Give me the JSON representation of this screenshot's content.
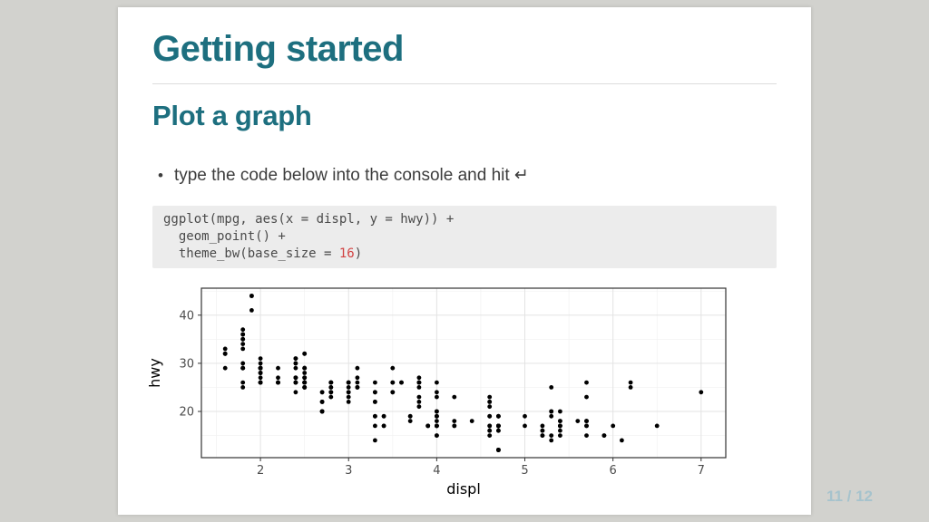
{
  "page": {
    "background_color": "#d2d2ce",
    "number": "11 / 12",
    "number_color": "#a6c3cd"
  },
  "slide": {
    "title": "Getting started",
    "subtitle": "Plot a graph",
    "accent_color": "#1d6f7f",
    "bullet_marker": "•",
    "bullet": "type the code below into the console and hit ↵"
  },
  "code_block": {
    "background": "#ececec",
    "text_color": "#4a4a4a",
    "number_color": "#d14141",
    "lines": [
      [
        {
          "t": "ggplot(mpg, aes(x = displ, y = hwy)) +",
          "c": "plain"
        }
      ],
      [
        {
          "t": "  geom_point() +",
          "c": "plain"
        }
      ],
      [
        {
          "t": "  theme_bw(base_size = ",
          "c": "plain"
        },
        {
          "t": "16",
          "c": "number"
        },
        {
          "t": ")",
          "c": "plain"
        }
      ]
    ]
  },
  "chart_data": {
    "type": "scatter",
    "title": "",
    "xlabel": "displ",
    "ylabel": "hwy",
    "xlim": [
      1.33,
      7.28
    ],
    "ylim": [
      10.4,
      45.6
    ],
    "x_ticks": [
      2,
      3,
      4,
      5,
      6,
      7
    ],
    "y_ticks": [
      20,
      30,
      40
    ],
    "x_minor": [
      1.5,
      2.5,
      3.5,
      4.5,
      5.5,
      6.5
    ],
    "y_minor": [
      15,
      25,
      35,
      45
    ],
    "grid": true,
    "legend": false,
    "point_color": "#000000",
    "panel_border_color": "#333333",
    "points": [
      [
        1.8,
        29
      ],
      [
        1.8,
        29
      ],
      [
        2,
        31
      ],
      [
        2,
        30
      ],
      [
        2.8,
        26
      ],
      [
        2.8,
        26
      ],
      [
        3.1,
        27
      ],
      [
        1.8,
        26
      ],
      [
        1.8,
        25
      ],
      [
        2,
        28
      ],
      [
        2,
        27
      ],
      [
        2.8,
        25
      ],
      [
        2.8,
        25
      ],
      [
        3.1,
        25
      ],
      [
        3.1,
        25
      ],
      [
        2.8,
        24
      ],
      [
        3.1,
        25
      ],
      [
        4.2,
        23
      ],
      [
        5.3,
        20
      ],
      [
        5.3,
        15
      ],
      [
        5.3,
        20
      ],
      [
        5.7,
        17
      ],
      [
        6,
        17
      ],
      [
        5.7,
        26
      ],
      [
        5.7,
        23
      ],
      [
        6.2,
        26
      ],
      [
        6.2,
        25
      ],
      [
        7,
        24
      ],
      [
        5.3,
        19
      ],
      [
        5.3,
        14
      ],
      [
        5.7,
        15
      ],
      [
        6.5,
        17
      ],
      [
        2.4,
        27
      ],
      [
        2.4,
        30
      ],
      [
        3.1,
        26
      ],
      [
        3.5,
        29
      ],
      [
        3.6,
        26
      ],
      [
        2.4,
        24
      ],
      [
        3,
        24
      ],
      [
        3.3,
        22
      ],
      [
        3.3,
        22
      ],
      [
        3.3,
        24
      ],
      [
        3.3,
        24
      ],
      [
        3.3,
        17
      ],
      [
        3.8,
        22
      ],
      [
        3.8,
        21
      ],
      [
        3.8,
        23
      ],
      [
        4,
        23
      ],
      [
        3.7,
        19
      ],
      [
        3.7,
        18
      ],
      [
        3.9,
        17
      ],
      [
        3.9,
        17
      ],
      [
        4.7,
        19
      ],
      [
        4.7,
        19
      ],
      [
        4.7,
        12
      ],
      [
        5.2,
        17
      ],
      [
        5.2,
        15
      ],
      [
        3.9,
        17
      ],
      [
        4.7,
        17
      ],
      [
        4.7,
        12
      ],
      [
        4.7,
        17
      ],
      [
        5.2,
        16
      ],
      [
        5.7,
        18
      ],
      [
        5.9,
        15
      ],
      [
        4.7,
        16
      ],
      [
        4.7,
        12
      ],
      [
        4.7,
        17
      ],
      [
        4.7,
        17
      ],
      [
        4.7,
        16
      ],
      [
        4.7,
        12
      ],
      [
        5.2,
        15
      ],
      [
        5.2,
        16
      ],
      [
        5.7,
        17
      ],
      [
        5.9,
        15
      ],
      [
        4.6,
        17
      ],
      [
        5.4,
        17
      ],
      [
        5.4,
        18
      ],
      [
        4,
        17
      ],
      [
        4,
        19
      ],
      [
        4,
        17
      ],
      [
        4,
        19
      ],
      [
        4.6,
        19
      ],
      [
        5,
        17
      ],
      [
        4.2,
        17
      ],
      [
        4.2,
        17
      ],
      [
        4.6,
        16
      ],
      [
        4.6,
        16
      ],
      [
        4.6,
        17
      ],
      [
        5.4,
        15
      ],
      [
        5.4,
        17
      ],
      [
        3.8,
        26
      ],
      [
        3.8,
        25
      ],
      [
        4,
        26
      ],
      [
        4,
        24
      ],
      [
        4.6,
        21
      ],
      [
        4.6,
        22
      ],
      [
        4.6,
        23
      ],
      [
        4.6,
        22
      ],
      [
        5.4,
        20
      ],
      [
        1.6,
        33
      ],
      [
        1.6,
        32
      ],
      [
        1.6,
        32
      ],
      [
        1.6,
        29
      ],
      [
        1.6,
        32
      ],
      [
        1.8,
        34
      ],
      [
        1.8,
        36
      ],
      [
        1.8,
        36
      ],
      [
        2,
        29
      ],
      [
        2.4,
        26
      ],
      [
        2.4,
        27
      ],
      [
        2.4,
        30
      ],
      [
        2.4,
        31
      ],
      [
        2.5,
        26
      ],
      [
        2.5,
        26
      ],
      [
        3.3,
        19
      ],
      [
        2,
        28
      ],
      [
        2,
        29
      ],
      [
        2,
        26
      ],
      [
        2,
        29
      ],
      [
        2.7,
        24
      ],
      [
        2.7,
        24
      ],
      [
        2.7,
        22
      ],
      [
        3,
        22
      ],
      [
        3.7,
        19
      ],
      [
        4,
        20
      ],
      [
        4.7,
        17
      ],
      [
        4.7,
        12
      ],
      [
        4.7,
        19
      ],
      [
        5.7,
        18
      ],
      [
        6.1,
        14
      ],
      [
        4,
        15
      ],
      [
        4.2,
        18
      ],
      [
        4.4,
        18
      ],
      [
        4.6,
        15
      ],
      [
        5.4,
        17
      ],
      [
        5.4,
        16
      ],
      [
        5.4,
        18
      ],
      [
        4,
        17
      ],
      [
        4,
        19
      ],
      [
        4.6,
        19
      ],
      [
        5,
        19
      ],
      [
        2.4,
        29
      ],
      [
        2.4,
        31
      ],
      [
        2.5,
        32
      ],
      [
        2.5,
        32
      ],
      [
        3.5,
        24
      ],
      [
        3.5,
        26
      ],
      [
        3,
        26
      ],
      [
        3,
        25
      ],
      [
        3.5,
        24
      ],
      [
        3.3,
        19
      ],
      [
        3.3,
        14
      ],
      [
        4,
        15
      ],
      [
        5.6,
        18
      ],
      [
        3.1,
        29
      ],
      [
        3.8,
        26
      ],
      [
        3.8,
        26
      ],
      [
        3.8,
        27
      ],
      [
        5.3,
        25
      ],
      [
        2.5,
        25
      ],
      [
        2.5,
        27
      ],
      [
        2.5,
        25
      ],
      [
        2.5,
        27
      ],
      [
        2.5,
        25
      ],
      [
        2.5,
        25
      ],
      [
        2.2,
        26
      ],
      [
        2.2,
        29
      ],
      [
        2.5,
        26
      ],
      [
        2.5,
        26
      ],
      [
        2.5,
        26
      ],
      [
        2.5,
        26
      ],
      [
        2.5,
        27
      ],
      [
        2.5,
        26
      ],
      [
        2.7,
        20
      ],
      [
        2.7,
        20
      ],
      [
        2.7,
        22
      ],
      [
        3.4,
        17
      ],
      [
        3.4,
        19
      ],
      [
        4,
        17
      ],
      [
        4.7,
        17
      ],
      [
        2.2,
        26
      ],
      [
        2.2,
        26
      ],
      [
        2.4,
        26
      ],
      [
        2.4,
        26
      ],
      [
        3,
        23
      ],
      [
        3,
        26
      ],
      [
        3.5,
        26
      ],
      [
        2.2,
        26
      ],
      [
        2.2,
        27
      ],
      [
        2.4,
        26
      ],
      [
        2.4,
        27
      ],
      [
        3,
        24
      ],
      [
        3,
        26
      ],
      [
        3.3,
        26
      ],
      [
        1.8,
        30
      ],
      [
        1.8,
        33
      ],
      [
        1.8,
        35
      ],
      [
        1.8,
        37
      ],
      [
        1.8,
        35
      ],
      [
        4.7,
        17
      ],
      [
        5.7,
        18
      ],
      [
        2.7,
        20
      ],
      [
        2.7,
        20
      ],
      [
        2.7,
        22
      ],
      [
        3.4,
        17
      ],
      [
        3.4,
        19
      ],
      [
        4,
        18
      ],
      [
        4,
        20
      ],
      [
        2,
        26
      ],
      [
        2,
        29
      ],
      [
        2,
        26
      ],
      [
        2,
        29
      ],
      [
        2.8,
        24
      ],
      [
        1.9,
        44
      ],
      [
        2,
        29
      ],
      [
        2,
        26
      ],
      [
        2,
        29
      ],
      [
        2,
        29
      ],
      [
        2.5,
        29
      ],
      [
        2.5,
        29
      ],
      [
        2.8,
        23
      ],
      [
        2.8,
        24
      ],
      [
        1.9,
        44
      ],
      [
        1.9,
        41
      ],
      [
        2,
        29
      ],
      [
        2,
        26
      ],
      [
        2.5,
        28
      ],
      [
        2.5,
        29
      ],
      [
        1.8,
        29
      ],
      [
        1.8,
        29
      ],
      [
        2,
        28
      ],
      [
        2,
        29
      ],
      [
        2.8,
        26
      ],
      [
        2.8,
        26
      ],
      [
        3.6,
        26
      ]
    ]
  }
}
